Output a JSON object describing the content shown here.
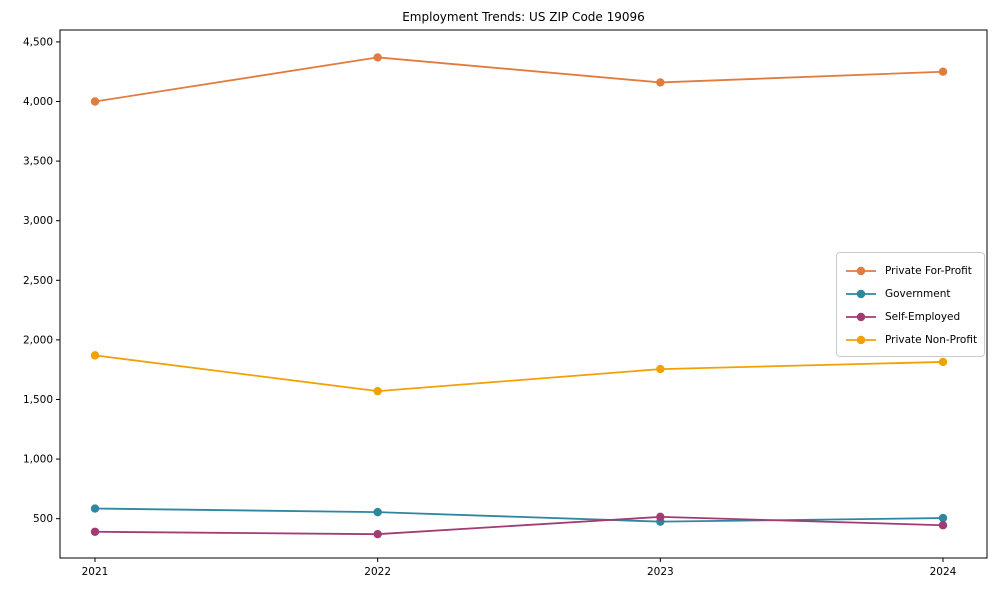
{
  "chart_data": {
    "type": "line",
    "title": "Employment Trends: US ZIP Code 19096",
    "xlabel": "",
    "ylabel": "",
    "x": [
      "2021",
      "2022",
      "2023",
      "2024"
    ],
    "series": [
      {
        "name": "Private For-Profit",
        "color": "#E17C3F",
        "values": [
          4000,
          4370,
          4160,
          4250
        ]
      },
      {
        "name": "Government",
        "color": "#2E86A0",
        "values": [
          585,
          555,
          475,
          505
        ]
      },
      {
        "name": "Self-Employed",
        "color": "#A23B72",
        "values": [
          390,
          370,
          515,
          445
        ]
      },
      {
        "name": "Private Non-Profit",
        "color": "#F2A104",
        "values": [
          1870,
          1570,
          1755,
          1815
        ]
      }
    ],
    "yticks": {
      "values": [
        500,
        1000,
        1500,
        2000,
        2500,
        3000,
        3500,
        4000,
        4500
      ],
      "labels": [
        "500",
        "1,000",
        "1,500",
        "2,000",
        "2,500",
        "3,000",
        "3,500",
        "4,000",
        "4,500"
      ]
    },
    "ylim": [
      170,
      4600
    ],
    "grid": false,
    "legend_position": "center-right",
    "marker": "circle",
    "axis_color": "#000000"
  }
}
